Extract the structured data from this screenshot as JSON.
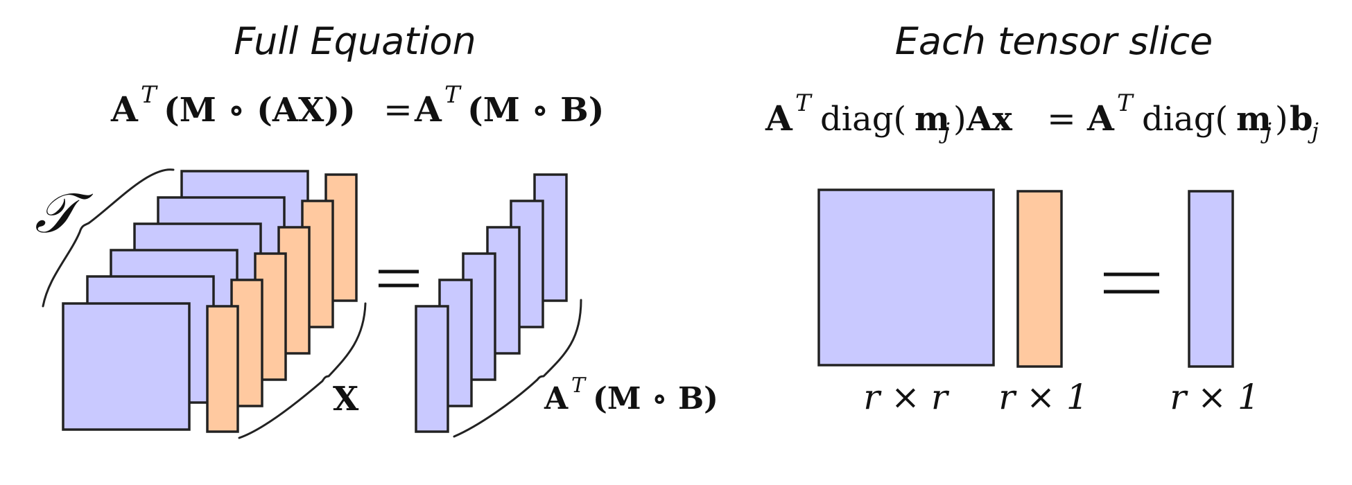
{
  "left_panel": {
    "title": "Full Equation",
    "equation": {
      "lhs_A": "A",
      "lhs_T": "T",
      "lhs_body": "(M ∘ (AX))",
      "eq": "=",
      "rhs_A": "A",
      "rhs_T": "T",
      "rhs_body": "(M ∘ B)"
    },
    "tensor_label": "𝒯",
    "x_label": "X",
    "result_label": {
      "A": "A",
      "T": "T",
      "body": "(M ∘ B)"
    }
  },
  "right_panel": {
    "title": "Each tensor slice",
    "equation": {
      "lhs_A": "A",
      "lhs_T": "T",
      "lhs_diag": "diag(",
      "lhs_m": "m",
      "lhs_j": "j",
      "lhs_close": ")",
      "lhs_Ax": "Ax",
      "eq": "=",
      "rhs_A": "A",
      "rhs_T": "T",
      "rhs_diag": "diag(",
      "rhs_m": "m",
      "rhs_j": "j",
      "rhs_close": ")",
      "rhs_b": "b",
      "rhs_bj": "j"
    },
    "dim_labels": [
      "r × r",
      "r × 1",
      "r × 1"
    ]
  },
  "colors": {
    "matrix_fill": "#c9c9ff",
    "vector_fill": "#ffc9a0",
    "stroke": "#222222"
  }
}
